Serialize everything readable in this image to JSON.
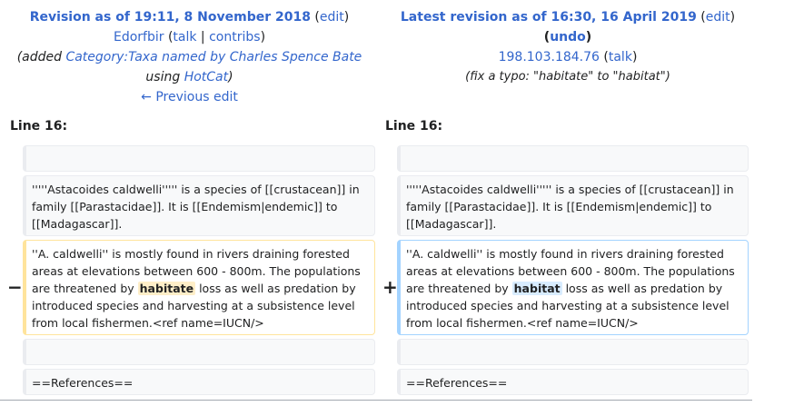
{
  "old_revision": {
    "title_prefix": "Revision as of 19:11, 8 November 2018",
    "edit_label": "edit",
    "user": "Edorfbir",
    "talk_label": "talk",
    "contribs_label": "contribs",
    "comment_prefix": "(added ",
    "comment_link": "Category:Taxa named by Charles Spence Bate",
    "comment_mid": "using ",
    "comment_link2": "HotCat",
    "comment_suffix": ")",
    "prev_edit": "← Previous edit"
  },
  "new_revision": {
    "title_prefix": "Latest revision as of 16:30, 16 April 2019",
    "edit_label": "edit",
    "undo_label": "undo",
    "user": "198.103.184.76",
    "talk_label": "talk",
    "comment": "(fix a typo: \"habitate\" to \"habitat\")"
  },
  "line_label": "Line 16:",
  "old_side": {
    "para1": "'''''Astacoides caldwelli''''' is a species of [[crustacean]] in family [[Parastacidae]]. It is [[Endemism|endemic]] to [[Madagascar]].",
    "changed_before": "''A. caldwelli'' is mostly found in rivers draining forested areas at elevations between 600 - 800m. The populations are threatened by ",
    "changed_word": "habitate",
    "changed_after": " loss as well as predation by introduced species and harvesting at a subsistence level from local fishermen.<ref name=IUCN/>",
    "references": "==References=="
  },
  "new_side": {
    "para1": "'''''Astacoides caldwelli''''' is a species of [[crustacean]] in family [[Parastacidae]]. It is [[Endemism|endemic]] to [[Madagascar]].",
    "changed_before": "''A. caldwelli'' is mostly found in rivers draining forested areas at elevations between 600 - 800m. The populations are threatened by ",
    "changed_word": "habitat",
    "changed_after": " loss as well as predation by introduced species and harvesting at a subsistence level from local fishermen.<ref name=IUCN/>",
    "references": "==References=="
  },
  "markers": {
    "minus": "−",
    "plus": "+"
  }
}
